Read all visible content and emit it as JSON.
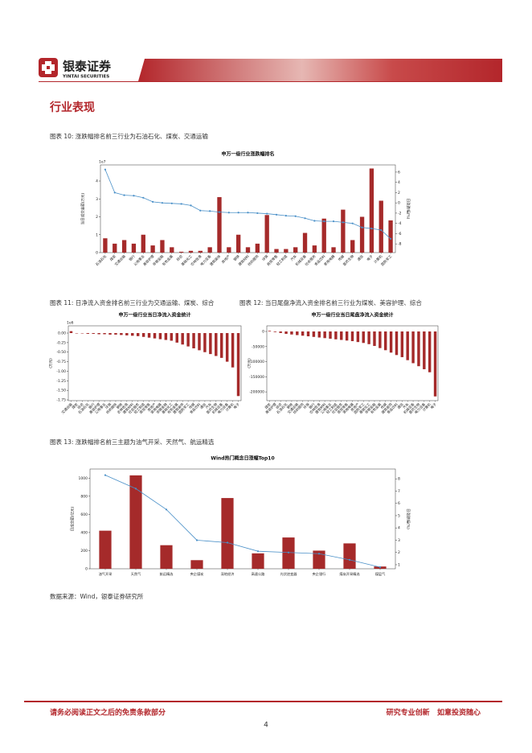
{
  "header": {
    "company": "银泰证券",
    "company_en": "YINTAI SECURITIES"
  },
  "section_title": "行业表现",
  "captions": [
    "图表 10: 涨跌幅排名前三行业为石油石化、煤炭、交通运输",
    "图表 11: 日净流入资金排名前三行业为交通运输、煤炭、综合",
    "图表 12: 当日尾盘净流入资金排名前三行业为煤炭、美容护理、综合",
    "图表 13: 涨跌幅排名前三主题为油气开采、天然气、航运精选"
  ],
  "source": "数据来源：Wind，银泰证券研究所",
  "footer": {
    "disclaimer": "请务必阅读正文之后的免责条款部分",
    "slogan": "研究专业创新   如意投资随心",
    "page": "4"
  },
  "chart_data": [
    {
      "type": "bar",
      "title": "申万一级行业涨跌幅排名",
      "y_offset_label": "1e7",
      "ylabel": "当日成交金额(万元)",
      "y2label": "日涨跌幅(%)",
      "categories": [
        "石油石化",
        "煤炭",
        "交通运输",
        "银行",
        "公用事业",
        "美容护理",
        "非银金融",
        "有色金属",
        "综合",
        "基础化工",
        "农林牧渔",
        "电力设备",
        "建筑装饰",
        "房地产",
        "钢铁",
        "建筑材料",
        "纺织服饰",
        "环保",
        "商贸零售",
        "轻工制造",
        "汽车",
        "机械设备",
        "社会服务",
        "食品饮料",
        "家用电器",
        "传媒",
        "医药生物",
        "通信",
        "电子",
        "计算机",
        "国防军工"
      ],
      "series": [
        {
          "color": "#a52a2a",
          "values": [
            0.8,
            0.5,
            0.7,
            0.5,
            1.0,
            0.4,
            0.7,
            0.3,
            0.05,
            0.1,
            0.1,
            0.3,
            3.1,
            0.3,
            1.0,
            0.3,
            0.5,
            2.1,
            0.2,
            0.2,
            0.3,
            1.1,
            0.4,
            1.9,
            0.3,
            2.4,
            0.7,
            2.0,
            4.7,
            2.9,
            1.8
          ]
        },
        {
          "type": "line",
          "axis": "y2",
          "color": "#4a90c8",
          "values": [
            6.5,
            2,
            1.5,
            1.4,
            1,
            0.2,
            0,
            -0.1,
            -0.2,
            -0.5,
            -1.5,
            -1.6,
            -1.8,
            -1.9,
            -1.9,
            -1.9,
            -2,
            -2.1,
            -2.3,
            -2.5,
            -2.6,
            -3,
            -3.5,
            -3.6,
            -3.6,
            -3.8,
            -4,
            -4.8,
            -5,
            -5.3,
            -7
          ]
        }
      ],
      "ylim": [
        0,
        4.9
      ],
      "yticks": [
        0,
        1,
        2,
        3,
        4
      ],
      "y2lim": [
        -9.7,
        7.4
      ],
      "y2ticks": [
        -8,
        -6,
        -4,
        -2,
        0,
        2,
        4,
        6
      ]
    },
    {
      "type": "bar",
      "title": "申万一级行业当日净流入资金统计",
      "y_offset_label": "1e6",
      "ylabel": "(万元)",
      "categories": [
        "交通运输",
        "煤炭",
        "综合",
        "石油石化",
        "银行",
        "美容护理",
        "公用事业",
        "环保",
        "纺织服饰",
        "钢铁",
        "农林牧渔",
        "建筑材料",
        "社会服务",
        "轻工制造",
        "商贸零售",
        "房地产",
        "家用电器",
        "非银金融",
        "基础化工",
        "有色金属",
        "建筑装饰",
        "国防军工",
        "传媒",
        "食品饮料",
        "通信",
        "汽车",
        "医药生物",
        "机械设备",
        "电力设备",
        "计算机",
        "电子"
      ],
      "series": [
        {
          "color": "#a52a2a",
          "values": [
            0.05,
            -0.01,
            -0.01,
            -0.02,
            -0.02,
            -0.03,
            -0.03,
            -0.04,
            -0.04,
            -0.05,
            -0.06,
            -0.07,
            -0.08,
            -0.1,
            -0.12,
            -0.14,
            -0.16,
            -0.18,
            -0.2,
            -0.25,
            -0.3,
            -0.35,
            -0.4,
            -0.45,
            -0.5,
            -0.55,
            -0.6,
            -0.65,
            -0.75,
            -0.9,
            -1.65
          ]
        }
      ],
      "ylim": [
        -1.77,
        0.19
      ],
      "yticks": [
        {
          "value": 0,
          "label": "0.00"
        },
        -0.25,
        {
          "value": -0.5,
          "label": "-0.50"
        },
        -0.75,
        {
          "value": -1,
          "label": "-1.00"
        },
        -1.25,
        {
          "value": -1.5,
          "label": "-1.50"
        },
        -1.75
      ]
    },
    {
      "type": "bar",
      "title": "申万一级行业当日尾盘净流入资金统计",
      "ylabel": "(万元)",
      "categories": [
        "煤炭",
        "美容护理",
        "综合",
        "石油石化",
        "钢铁",
        "交通运输",
        "纺织服饰",
        "环保",
        "银行",
        "农林牧渔",
        "建筑材料",
        "公用事业",
        "轻工制造",
        "社会服务",
        "商贸零售",
        "家用电器",
        "房地产",
        "国防军工",
        "基础化工",
        "非银金融",
        "有色金属",
        "传媒",
        "建筑装饰",
        "食品饮料",
        "通信",
        "汽车",
        "机械设备",
        "医药生物",
        "电力设备",
        "计算机",
        "电子"
      ],
      "series": [
        {
          "color": "#a52a2a",
          "values": [
            2000,
            -2000,
            -5000,
            -8000,
            -10000,
            -12000,
            -14000,
            -16000,
            -18000,
            -20000,
            -22000,
            -24000,
            -26000,
            -28000,
            -30000,
            -32000,
            -35000,
            -38000,
            -42000,
            -48000,
            -55000,
            -62000,
            -70000,
            -78000,
            -85000,
            -95000,
            -105000,
            -115000,
            -125000,
            -135000,
            -215000
          ]
        }
      ],
      "ylim": [
        -229000,
        18700
      ],
      "yticks": [
        0,
        -50000,
        -100000,
        -150000,
        -200000
      ]
    },
    {
      "type": "bar",
      "title": "Wind热门概念日涨幅Top10",
      "ylabel": "日成交额(亿元)",
      "y2label": "日涨跌幅(%)",
      "categories": [
        "油气开采",
        "天然气",
        "航运精选",
        "央企煤炭",
        "深地经济",
        "高速公路",
        "光伏逆变器",
        "央企银行",
        "煤炭开采精选",
        "煤层气"
      ],
      "series": [
        {
          "color": "#a52a2a",
          "values": [
            420,
            1030,
            260,
            95,
            780,
            170,
            345,
            200,
            280,
            25
          ]
        },
        {
          "type": "line",
          "axis": "y2",
          "color": "#4a90c8",
          "values": [
            8.3,
            7.2,
            5.5,
            3.0,
            2.8,
            2.1,
            2.0,
            1.9,
            1.4,
            0.8
          ]
        }
      ],
      "ylim": [
        0,
        1100
      ],
      "yticks": [
        0,
        200,
        400,
        600,
        800,
        1000
      ],
      "y2lim": [
        0.67,
        8.8
      ],
      "y2ticks": [
        1,
        2,
        3,
        4,
        5,
        6,
        7,
        8
      ]
    }
  ]
}
